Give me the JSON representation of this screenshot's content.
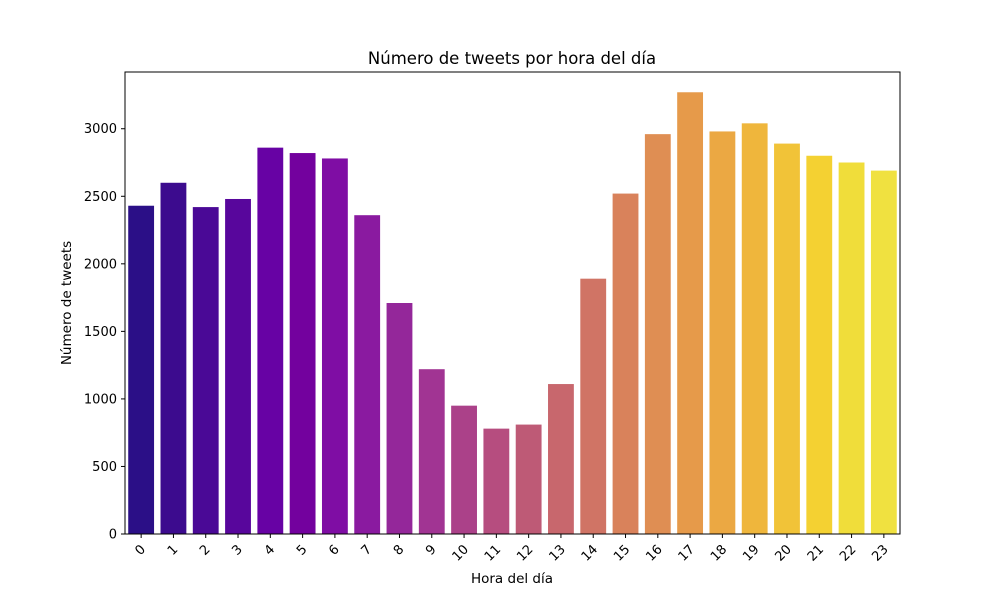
{
  "chart_data": {
    "type": "bar",
    "title": "Número de tweets por hora del día",
    "xlabel": "Hora del día",
    "ylabel": "Número de tweets",
    "categories": [
      "0",
      "1",
      "2",
      "3",
      "4",
      "5",
      "6",
      "7",
      "8",
      "9",
      "10",
      "11",
      "12",
      "13",
      "14",
      "15",
      "16",
      "17",
      "18",
      "19",
      "20",
      "21",
      "22",
      "23"
    ],
    "values": [
      2430,
      2600,
      2420,
      2480,
      2860,
      2820,
      2780,
      2360,
      1710,
      1220,
      950,
      780,
      810,
      1110,
      1890,
      2520,
      2960,
      3270,
      2980,
      3040,
      2890,
      2800,
      2750,
      2690
    ],
    "ylim": [
      0,
      3420
    ],
    "yticks": [
      0,
      500,
      1000,
      1500,
      2000,
      2500,
      3000
    ],
    "grid": false,
    "palette": "plasma",
    "colors": [
      "#2b0f87",
      "#3c0b8e",
      "#4a0996",
      "#58069c",
      "#6702a4",
      "#73019e",
      "#7f0da4",
      "#8a1aa0",
      "#94279a",
      "#a13493",
      "#ab4189",
      "#b64d7f",
      "#be5a76",
      "#c8676d",
      "#d07465",
      "#d9825b",
      "#df8e53",
      "#e69a4a",
      "#eba843",
      "#efb63c",
      "#f1c338",
      "#f4d132",
      "#f0dd3a",
      "#f0e140"
    ]
  }
}
